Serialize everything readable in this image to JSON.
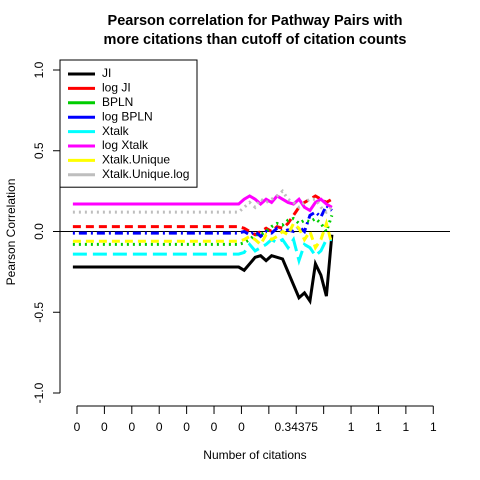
{
  "chart_data": {
    "type": "line",
    "title": [
      "Pearson correlation for Pathway Pairs with",
      "more citations than cutoff of citation counts"
    ],
    "xlabel": "Number of citations",
    "ylabel": "Pearson Correlation",
    "x": [
      -0.15,
      5.9,
      6.1,
      6.3,
      6.5,
      6.7,
      6.9,
      7.1,
      7.3,
      7.5,
      7.7,
      7.9,
      8.1,
      8.3,
      8.5,
      8.7,
      8.9,
      9.1,
      9.3
    ],
    "xlim": [
      -0.62,
      13.61
    ],
    "xticks": [
      {
        "value": 0,
        "label": "0"
      },
      {
        "value": 1,
        "label": "0"
      },
      {
        "value": 2,
        "label": "0"
      },
      {
        "value": 3,
        "label": "0"
      },
      {
        "value": 4,
        "label": "0"
      },
      {
        "value": 5,
        "label": "0"
      },
      {
        "value": 6,
        "label": "0"
      },
      {
        "value": 7,
        "label": null
      },
      {
        "value": 8,
        "label": "0.34375"
      },
      {
        "value": 9,
        "label": null
      },
      {
        "value": 10,
        "label": "1"
      },
      {
        "value": 11,
        "label": "1"
      },
      {
        "value": 12,
        "label": "1"
      },
      {
        "value": 13,
        "label": "1"
      }
    ],
    "ylim": [
      -1.0,
      1.0
    ],
    "yticks": [
      {
        "value": -1,
        "label": "-1.0"
      },
      {
        "value": -0.5,
        "label": "-0.5"
      },
      {
        "value": 0,
        "label": "0.0"
      },
      {
        "value": 0.5,
        "label": "0.5"
      },
      {
        "value": 1,
        "label": "1.0"
      }
    ],
    "hline": 0,
    "legend": "top-left",
    "series": [
      {
        "name": "JI",
        "color": "#000000",
        "linetype": "solid",
        "values": [
          -0.22,
          -0.22,
          -0.24,
          -0.2,
          -0.16,
          -0.15,
          -0.18,
          -0.15,
          -0.16,
          -0.17,
          -0.25,
          -0.33,
          -0.41,
          -0.38,
          -0.43,
          -0.2,
          -0.27,
          -0.4,
          -0.02
        ]
      },
      {
        "name": "log JI",
        "color": "#ff0000",
        "linetype": "dashed",
        "values": [
          0.03,
          0.03,
          0.02,
          0.0,
          -0.02,
          0.0,
          0.02,
          0.0,
          0.03,
          0.02,
          0.05,
          0.1,
          0.15,
          0.18,
          0.2,
          0.22,
          0.2,
          0.18,
          0.2
        ]
      },
      {
        "name": "BPLN",
        "color": "#00cd00",
        "linetype": "dotted",
        "values": [
          -0.08,
          -0.08,
          -0.07,
          -0.05,
          -0.02,
          -0.02,
          0.0,
          0.03,
          0.05,
          0.04,
          0.07,
          0.08,
          0.05,
          0.07,
          0.06,
          0.08,
          0.05,
          0.0,
          0.1
        ]
      },
      {
        "name": "log BPLN",
        "color": "#0000ff",
        "linetype": "dotdash",
        "values": [
          -0.01,
          -0.01,
          0.0,
          -0.02,
          0.0,
          -0.03,
          0.0,
          -0.01,
          0.02,
          0.0,
          0.01,
          0.0,
          0.03,
          0.0,
          0.1,
          0.12,
          0.09,
          0.16,
          0.13
        ]
      },
      {
        "name": "Xtalk",
        "color": "#00ffff",
        "linetype": "longdash",
        "values": [
          -0.14,
          -0.14,
          -0.13,
          -0.08,
          -0.12,
          -0.1,
          -0.08,
          -0.05,
          -0.07,
          -0.05,
          -0.1,
          -0.05,
          -0.18,
          -0.08,
          -0.1,
          -0.15,
          -0.12,
          -0.05,
          -0.05
        ]
      },
      {
        "name": "log Xtalk",
        "color": "#ff00ff",
        "linetype": "solid",
        "values": [
          0.17,
          0.17,
          0.2,
          0.22,
          0.2,
          0.17,
          0.2,
          0.18,
          0.22,
          0.2,
          0.18,
          0.17,
          0.2,
          0.15,
          0.13,
          0.18,
          0.2,
          0.17,
          0.15
        ]
      },
      {
        "name": "Xtalk.Unique",
        "color": "#ffff00",
        "linetype": "dashed",
        "values": [
          -0.06,
          -0.06,
          -0.05,
          -0.03,
          -0.05,
          -0.08,
          -0.02,
          -0.05,
          -0.03,
          0.0,
          -0.02,
          0.05,
          0.02,
          -0.05,
          0.0,
          -0.1,
          -0.05,
          0.05,
          -0.08
        ]
      },
      {
        "name": "Xtalk.Unique.log",
        "color": "#bebebe",
        "linetype": "dotted",
        "values": [
          0.12,
          0.12,
          0.15,
          0.18,
          0.15,
          0.2,
          0.18,
          0.2,
          0.22,
          0.25,
          0.2,
          0.18,
          0.15,
          0.18,
          0.2,
          0.2,
          0.15,
          0.12,
          0.15
        ]
      }
    ]
  }
}
